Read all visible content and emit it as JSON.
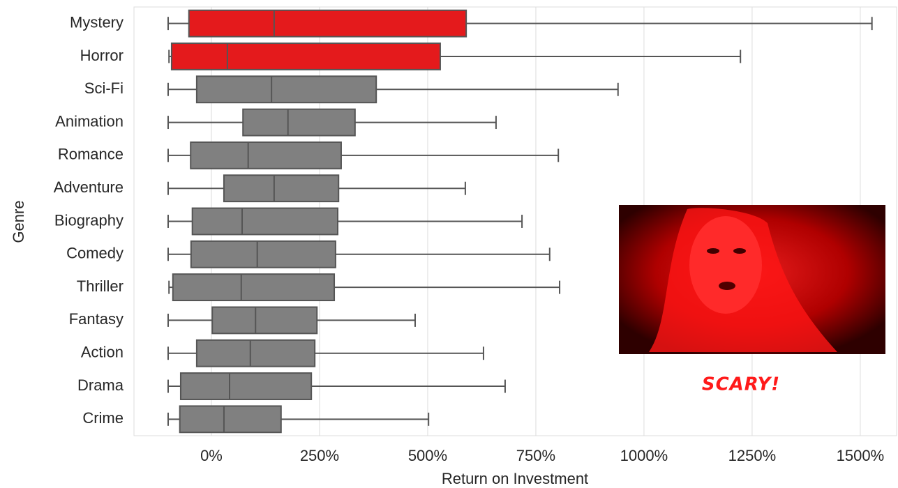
{
  "chart_data": {
    "type": "box",
    "orientation": "horizontal",
    "xlabel": "Return on Investment",
    "ylabel": "Genre",
    "annotation": "SCARY!",
    "categories": [
      "Mystery",
      "Horror",
      "Sci-Fi",
      "Animation",
      "Romance",
      "Adventure",
      "Biography",
      "Comedy",
      "Thriller",
      "Fantasy",
      "Action",
      "Drama",
      "Crime"
    ],
    "whisker_low": [
      -100,
      -98,
      -100,
      -100,
      -100,
      -100,
      -100,
      -100,
      -98,
      -100,
      -100,
      -100,
      -100
    ],
    "q1": [
      -52,
      -92,
      -34,
      73,
      -48,
      29,
      -44,
      -47,
      -89,
      2,
      -34,
      -71,
      -73
    ],
    "median": [
      145,
      37,
      139,
      177,
      85,
      145,
      71,
      106,
      69,
      102,
      90,
      42,
      29
    ],
    "q3": [
      589,
      529,
      381,
      332,
      300,
      294,
      292,
      287,
      284,
      244,
      239,
      231,
      161
    ],
    "whisker_high": [
      1527,
      1223,
      940,
      658,
      802,
      587,
      718,
      782,
      805,
      471,
      629,
      679,
      502
    ],
    "colors": [
      "#e41a1c",
      "#e41a1c",
      "#808080",
      "#808080",
      "#808080",
      "#808080",
      "#808080",
      "#808080",
      "#808080",
      "#808080",
      "#808080",
      "#808080",
      "#808080"
    ],
    "xlim": [
      -179,
      1584
    ],
    "xticks": [
      {
        "value": 0,
        "label": "0%"
      },
      {
        "value": 250,
        "label": "250%"
      },
      {
        "value": 500,
        "label": "500%"
      },
      {
        "value": 750,
        "label": "750%"
      },
      {
        "value": 1000,
        "label": "1000%"
      },
      {
        "value": 1250,
        "label": "1250%"
      },
      {
        "value": 1500,
        "label": "1500%"
      }
    ],
    "grid": true
  }
}
